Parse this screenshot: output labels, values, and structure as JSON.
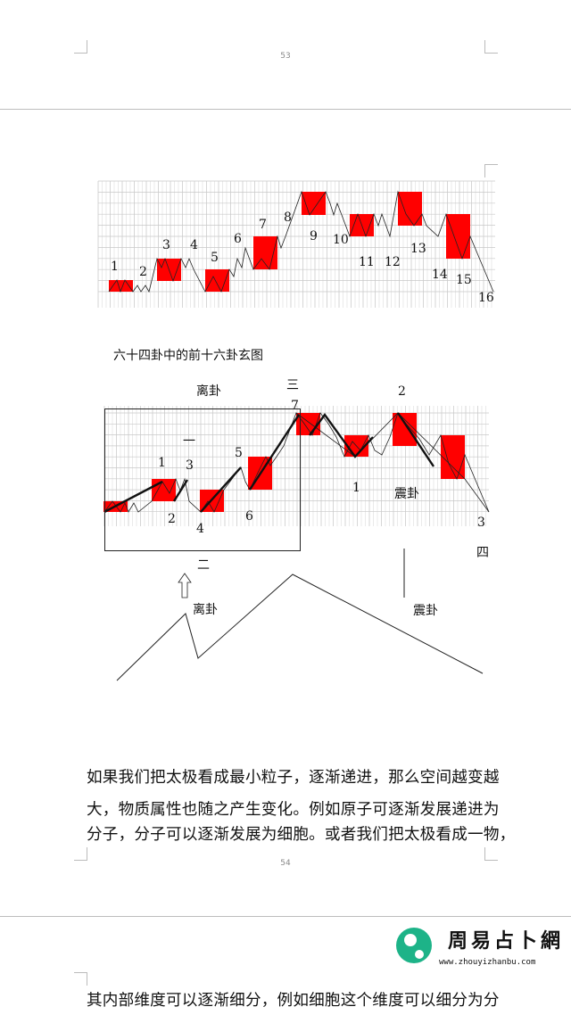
{
  "pages": {
    "first_number": "53",
    "second_number": "54"
  },
  "figure1": {
    "labels": [
      "1",
      "2",
      "3",
      "4",
      "5",
      "6",
      "7",
      "8",
      "9",
      "10",
      "11",
      "12",
      "13",
      "14",
      "15",
      "16"
    ],
    "caption": "六十四卦中的前十六卦玄图",
    "box_color": "#ff0000"
  },
  "figure2": {
    "label_li_top": "离卦",
    "label_san": "三",
    "label_7": "7",
    "label_2_top": "2",
    "label_yi": "一",
    "label_1a": "1",
    "label_3a": "3",
    "label_5": "5",
    "label_2a": "2",
    "label_4": "4",
    "label_6": "6",
    "label_1b": "1",
    "label_zhen": "震卦",
    "label_3b": "3",
    "label_si": "四",
    "label_er": "二",
    "label_li_bottom": "离卦",
    "label_zhen_bottom": "震卦",
    "box_color": "#ff0000"
  },
  "paragraph": {
    "lines": [
      "如果我们把太极看成最小粒子，逐渐递进，那么空间越变越",
      "大，物质属性也随之产生变化。例如原子可逐渐发展递进为",
      "分子，分子可以逐渐发展为细胞。或者我们把太极看成一物，",
      "其内部维度可以逐渐细分，例如细胞这个维度可以细分为分"
    ]
  },
  "watermark": {
    "name": "周易占卜網",
    "url": "www.zhouyizhanbu.com",
    "color": "#1db388"
  }
}
